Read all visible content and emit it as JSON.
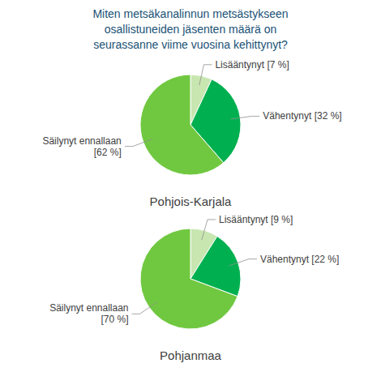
{
  "title": "Miten metsäkanalinnun metsästykseen\nosallistuneiden jäsenten määrä on\nseurassanne viime vuosina kehittynyt?",
  "chart_data": [
    {
      "type": "pie",
      "subtitle": "Pohjois-Karjala",
      "values": [
        7,
        32,
        62
      ],
      "value_labels": [
        "Lisääntynyt [7 %]",
        "Vähentynyt [32 %]",
        "Säilynyt ennallaan\n[62 %]"
      ],
      "colors": [
        "#c8e6b0",
        "#00b050",
        "#70c840"
      ]
    },
    {
      "type": "pie",
      "subtitle": "Pohjanmaa",
      "values": [
        9,
        22,
        70
      ],
      "value_labels": [
        "Lisääntynyt [9 %]",
        "Vähentynyt [22 %]",
        "Säilynyt ennallaan\n[70 %]"
      ],
      "colors": [
        "#c8e6b0",
        "#00b050",
        "#70c840"
      ]
    }
  ]
}
